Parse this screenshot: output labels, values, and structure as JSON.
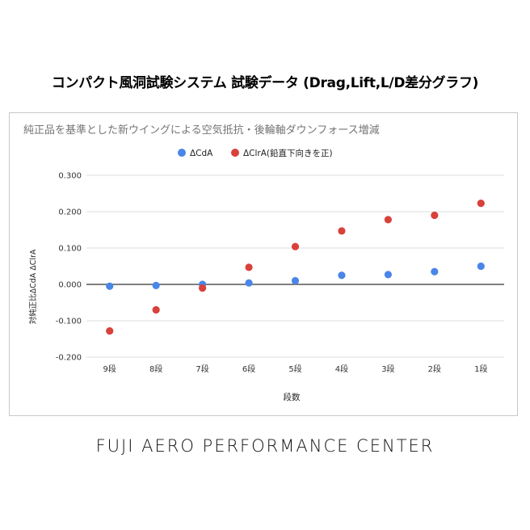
{
  "page": {
    "title": "コンパクト風洞試験システム 試験データ (Drag,Lift,L/D差分グラフ)",
    "footer": "FUJI AERO PERFORMANCE CENTER"
  },
  "chart_data": {
    "type": "scatter",
    "title": "純正品を基準とした新ウイングによる空気抵抗・後輪軸ダウンフォース増減",
    "xlabel": "段数",
    "ylabel": "対純正比ΔCdA ΔClrA",
    "categories": [
      "9段",
      "8段",
      "7段",
      "6段",
      "5段",
      "4段",
      "3段",
      "2段",
      "1段"
    ],
    "ylim": [
      -0.2,
      0.3
    ],
    "yticks": [
      "0.300",
      "0.200",
      "0.100",
      "0.000",
      "-0.100",
      "-0.200"
    ],
    "ytick_values": [
      0.3,
      0.2,
      0.1,
      0.0,
      -0.1,
      -0.2
    ],
    "grid": true,
    "legend_position": "top",
    "series": [
      {
        "name": "ΔCdA",
        "color": "#4a86e8",
        "values": [
          -0.005,
          -0.003,
          0.0,
          0.004,
          0.01,
          0.025,
          0.027,
          0.035,
          0.05
        ]
      },
      {
        "name": "ΔClrA(鉛直下向きを正)",
        "color": "#d9413b",
        "values": [
          -0.128,
          -0.07,
          -0.01,
          0.047,
          0.104,
          0.147,
          0.178,
          0.19,
          0.223
        ]
      }
    ]
  }
}
